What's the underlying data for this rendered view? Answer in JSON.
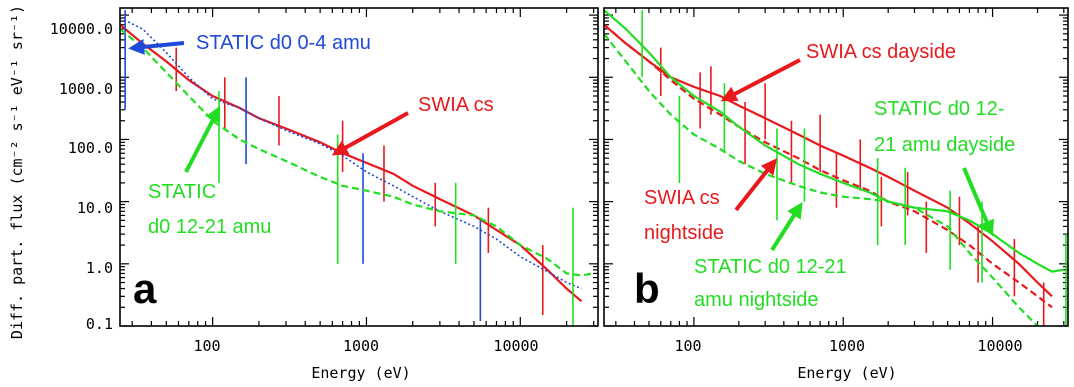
{
  "colors": {
    "red": "#e8191d",
    "green": "#22dd22",
    "blue": "#1f49d6",
    "axis": "#000000"
  },
  "chart_data": [
    {
      "type": "line",
      "panel_label": "a",
      "xscale": "log",
      "yscale": "log",
      "xlim": [
        25,
        32000
      ],
      "ylim": [
        0.1,
        13000
      ],
      "xlabel": "Energy (eV)",
      "ylabel": "Diff. part. flux (cm⁻² s⁻¹ eV⁻¹ sr⁻¹)",
      "xticks": [
        100,
        1000,
        10000
      ],
      "xtick_labels": [
        "100",
        "1000",
        "10000"
      ],
      "yticks": [
        0.1,
        1,
        10,
        100,
        1000,
        10000
      ],
      "ytick_labels": [
        "0.1",
        "1.0",
        "10.0",
        "100.0",
        "1000.0",
        "10000.0"
      ],
      "series": [
        {
          "name": "SWIA cs",
          "color": "#e8191d",
          "style": "solid",
          "x": [
            25,
            35,
            50,
            70,
            100,
            150,
            200,
            300,
            500,
            700,
            1000,
            1500,
            2000,
            3000,
            5000,
            7000,
            10000,
            15000,
            20000,
            25000
          ],
          "y": [
            7000,
            3500,
            1800,
            900,
            500,
            320,
            220,
            150,
            90,
            60,
            42,
            28,
            18,
            11,
            6,
            3.5,
            2,
            0.8,
            0.4,
            0.25
          ],
          "error_bars": [
            {
              "x": 58,
              "low": 600,
              "high": 3000
            },
            {
              "x": 120,
              "low": 150,
              "high": 1000
            },
            {
              "x": 270,
              "low": 80,
              "high": 500
            },
            {
              "x": 700,
              "low": 30,
              "high": 200
            },
            {
              "x": 1300,
              "low": 10,
              "high": 80
            },
            {
              "x": 2800,
              "low": 4,
              "high": 20
            },
            {
              "x": 6200,
              "low": 1.5,
              "high": 8
            },
            {
              "x": 14000,
              "low": 0.15,
              "high": 2
            }
          ]
        },
        {
          "name": "STATIC d0 0-4 amu",
          "color": "#1f49d6",
          "style": "dotted",
          "x": [
            25,
            35,
            50,
            70,
            100,
            150,
            200,
            300,
            500,
            700,
            1000,
            1500,
            2000,
            3000,
            5000,
            7000,
            10000,
            15000,
            20000,
            25000
          ],
          "y": [
            9000,
            6000,
            2500,
            1000,
            450,
            320,
            220,
            140,
            85,
            55,
            30,
            18,
            12,
            7,
            4,
            2.5,
            1.3,
            0.75,
            0.5,
            0.4
          ],
          "error_bars": [
            {
              "x": 27,
              "low": 300,
              "high": 12000
            },
            {
              "x": 165,
              "low": 40,
              "high": 1000
            },
            {
              "x": 950,
              "low": 1,
              "high": 60
            },
            {
              "x": 5500,
              "low": 0.12,
              "high": 5
            }
          ]
        },
        {
          "name": "STATIC d0 12-21 amu",
          "color": "#22dd22",
          "style": "dashed",
          "x": [
            25,
            35,
            50,
            70,
            100,
            150,
            200,
            300,
            500,
            700,
            1000,
            1500,
            2000,
            3000,
            5000,
            7000,
            10000,
            15000,
            20000,
            25000,
            30000
          ],
          "y": [
            6000,
            3000,
            1200,
            500,
            200,
            100,
            70,
            45,
            25,
            18,
            15,
            12,
            9,
            7,
            6,
            4,
            2,
            1.2,
            0.7,
            0.65,
            0.7
          ],
          "error_bars": [
            {
              "x": 110,
              "low": 20,
              "high": 600
            },
            {
              "x": 650,
              "low": 1,
              "high": 120
            },
            {
              "x": 3800,
              "low": 1,
              "high": 20
            },
            {
              "x": 22000,
              "low": 0.1,
              "high": 8
            }
          ]
        }
      ],
      "annotations": [
        {
          "text": "STATIC d0 0-4 amu",
          "color": "#1f49d6"
        },
        {
          "text": "SWIA cs",
          "color": "#e8191d"
        },
        {
          "lines": [
            "STATIC",
            "d0 12-21 amu"
          ],
          "color": "#22dd22"
        }
      ]
    },
    {
      "type": "line",
      "panel_label": "b",
      "xscale": "log",
      "yscale": "log",
      "xlim": [
        25,
        32000
      ],
      "ylim": [
        0.1,
        13000
      ],
      "xlabel": "Energy (eV)",
      "ylabel": "",
      "xticks": [
        100,
        1000,
        10000
      ],
      "xtick_labels": [
        "100",
        "1000",
        "10000"
      ],
      "yticks": [
        0.1,
        1,
        10,
        100,
        1000,
        10000
      ],
      "series": [
        {
          "name": "SWIA cs dayside",
          "color": "#e8191d",
          "style": "solid",
          "x": [
            25,
            35,
            50,
            70,
            100,
            150,
            200,
            300,
            500,
            700,
            1000,
            1500,
            2000,
            3000,
            5000,
            7000,
            10000,
            15000,
            20000,
            25000
          ],
          "y": [
            7000,
            3500,
            1800,
            1000,
            700,
            500,
            350,
            220,
            120,
            80,
            55,
            35,
            25,
            15,
            8,
            4.5,
            2.3,
            1,
            0.5,
            0.3
          ],
          "error_bars": [
            {
              "x": 60,
              "low": 500,
              "high": 3000
            },
            {
              "x": 130,
              "low": 250,
              "high": 1500
            },
            {
              "x": 300,
              "low": 100,
              "high": 800
            },
            {
              "x": 700,
              "low": 30,
              "high": 250
            },
            {
              "x": 1300,
              "low": 15,
              "high": 100
            },
            {
              "x": 2700,
              "low": 6,
              "high": 30
            },
            {
              "x": 6000,
              "low": 2,
              "high": 12
            },
            {
              "x": 14000,
              "low": 0.3,
              "high": 2.5
            }
          ]
        },
        {
          "name": "SWIA cs nightside",
          "color": "#e8191d",
          "style": "dashed",
          "x": [
            25,
            35,
            50,
            70,
            100,
            150,
            200,
            300,
            500,
            700,
            1000,
            1500,
            2000,
            3000,
            5000,
            7000,
            10000,
            15000,
            20000,
            25000
          ],
          "y": [
            7000,
            3500,
            1800,
            900,
            450,
            250,
            160,
            90,
            50,
            32,
            22,
            15,
            10,
            7,
            3.5,
            2,
            1,
            0.5,
            0.3,
            0.2
          ],
          "error_bars": [
            {
              "x": 110,
              "low": 150,
              "high": 1200
            },
            {
              "x": 220,
              "low": 40,
              "high": 400
            },
            {
              "x": 450,
              "low": 20,
              "high": 200
            },
            {
              "x": 900,
              "low": 8,
              "high": 60
            },
            {
              "x": 1800,
              "low": 4,
              "high": 25
            },
            {
              "x": 3600,
              "low": 1.5,
              "high": 10
            },
            {
              "x": 8000,
              "low": 0.5,
              "high": 4
            },
            {
              "x": 22000,
              "low": 0.1,
              "high": 0.5
            }
          ]
        },
        {
          "name": "STATIC d0 12-21 amu dayside",
          "color": "#22dd22",
          "style": "solid",
          "x": [
            25,
            35,
            50,
            70,
            100,
            150,
            200,
            300,
            500,
            700,
            1000,
            1500,
            2000,
            3000,
            5000,
            7000,
            10000,
            15000,
            20000,
            25000,
            30000
          ],
          "y": [
            12000,
            6000,
            2500,
            1000,
            500,
            280,
            160,
            80,
            40,
            28,
            20,
            14,
            10,
            8,
            7,
            5,
            3,
            1.5,
            1,
            0.75,
            0.8
          ],
          "error_bars": [
            {
              "x": 45,
              "low": 1000,
              "high": 12000
            },
            {
              "x": 160,
              "low": 60,
              "high": 800
            },
            {
              "x": 550,
              "low": 10,
              "high": 150
            },
            {
              "x": 2600,
              "low": 2,
              "high": 35
            },
            {
              "x": 8500,
              "low": 0.5,
              "high": 10
            }
          ]
        },
        {
          "name": "STATIC d0 12-21 amu nightside",
          "color": "#22dd22",
          "style": "dashed",
          "x": [
            25,
            35,
            50,
            70,
            100,
            150,
            200,
            300,
            500,
            700,
            1000,
            1500,
            2000,
            3000,
            5000,
            7000,
            10000,
            15000,
            20000
          ],
          "y": [
            5000,
            1800,
            600,
            250,
            120,
            70,
            45,
            28,
            18,
            14,
            12,
            11,
            10,
            8,
            4,
            1.5,
            0.6,
            0.2,
            0.1
          ],
          "error_bars": [
            {
              "x": 80,
              "low": 20,
              "high": 500
            },
            {
              "x": 360,
              "low": 5,
              "high": 150
            },
            {
              "x": 1700,
              "low": 2,
              "high": 50
            },
            {
              "x": 5200,
              "low": 0.8,
              "high": 15
            },
            {
              "x": 31000,
              "low": 0.1,
              "high": 3
            }
          ]
        }
      ],
      "annotations": [
        {
          "text": "SWIA cs dayside",
          "color": "#e8191d"
        },
        {
          "lines": [
            "SWIA cs",
            "nightside"
          ],
          "color": "#e8191d"
        },
        {
          "lines": [
            "STATIC d0 12-",
            "21 amu dayside"
          ],
          "color": "#22dd22"
        },
        {
          "lines": [
            "STATIC d0 12-21",
            "amu nightside"
          ],
          "color": "#22dd22"
        }
      ]
    }
  ]
}
